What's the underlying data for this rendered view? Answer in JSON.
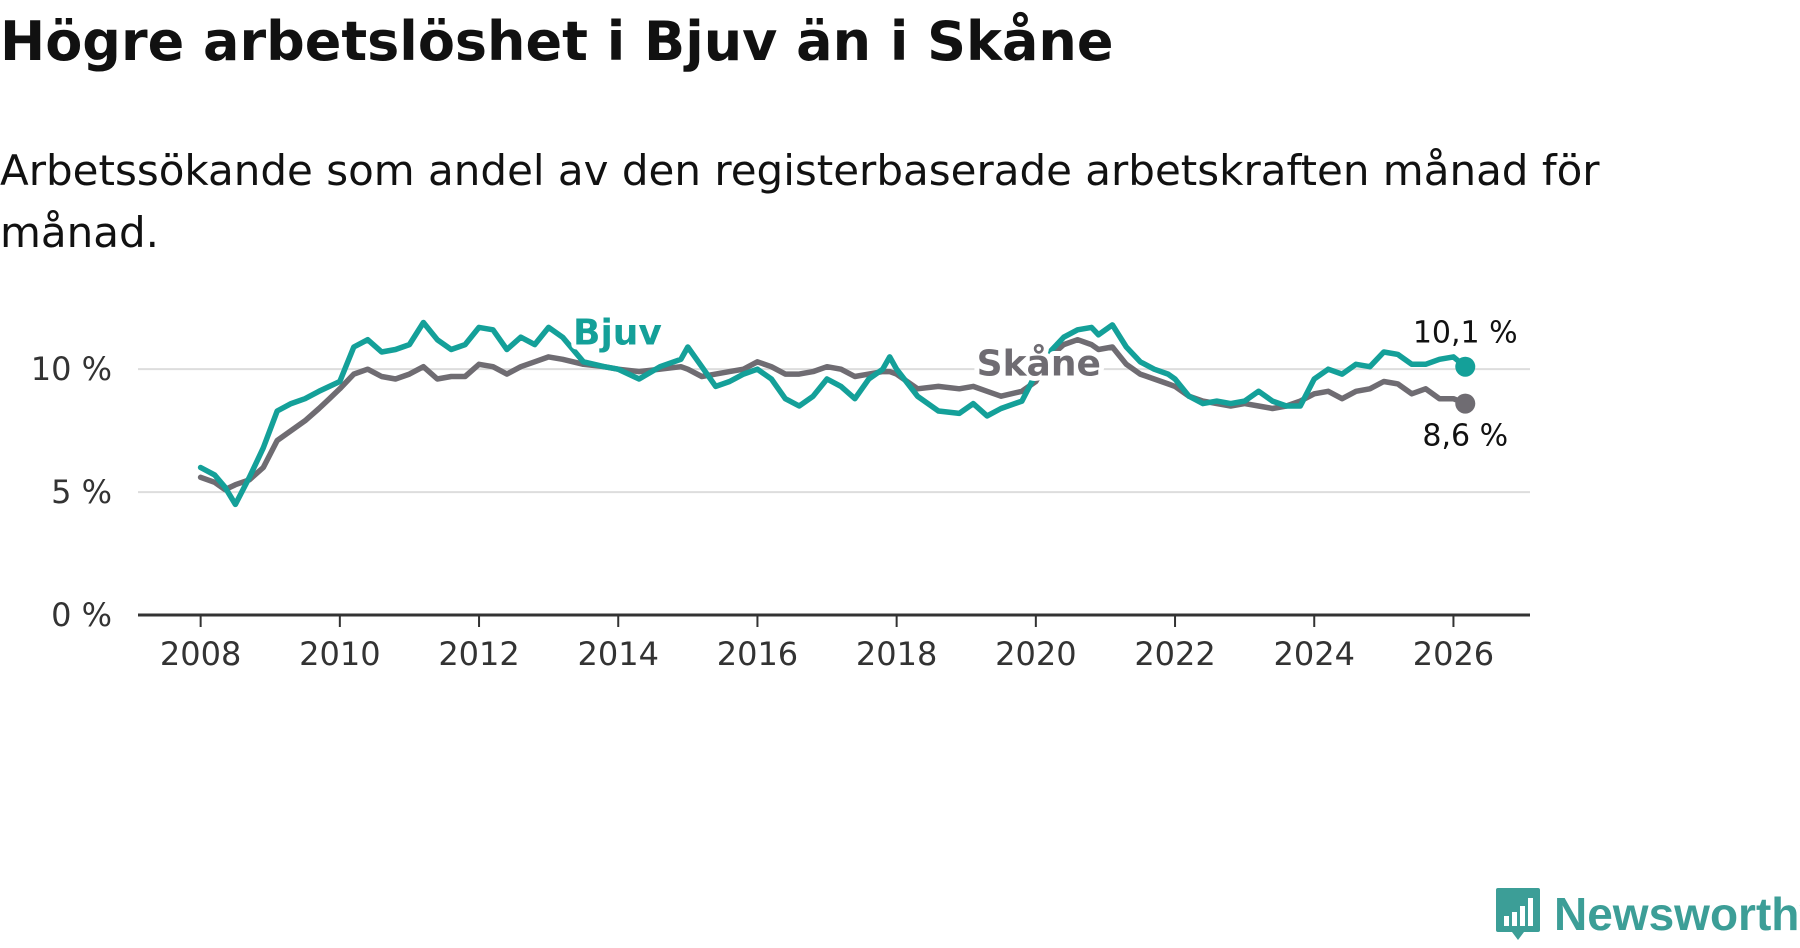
{
  "header": {
    "title": "Högre arbetslöshet i Bjuv än i Skåne",
    "subtitle": "Arbetssökande som andel av den registerbaserade arbetskraften månad för månad."
  },
  "logo": {
    "text": "Newsworthy",
    "icon": "bar-chart-speech-bubble-icon"
  },
  "colors": {
    "bjuv": "#14a099",
    "skane": "#6f6c72",
    "grid": "#dddddd",
    "axis": "#333333"
  },
  "chart_data": {
    "type": "line",
    "title": "Högre arbetslöshet i Bjuv än i Skåne",
    "xlabel": "",
    "ylabel": "",
    "xlim": [
      2007.1,
      2027.1
    ],
    "ylim": [
      0,
      12
    ],
    "grid": true,
    "x_ticks": [
      2008,
      2010,
      2012,
      2014,
      2016,
      2018,
      2020,
      2022,
      2024,
      2026
    ],
    "x_tick_labels": [
      "2008",
      "2010",
      "2012",
      "2014",
      "2016",
      "2018",
      "2020",
      "2022",
      "2024",
      "2026"
    ],
    "y_ticks": [
      0,
      5,
      10
    ],
    "y_tick_labels": [
      "0 %",
      "5 %",
      "10 %"
    ],
    "series": [
      {
        "name": "Bjuv",
        "label": "Bjuv",
        "end_label": "10,1 %",
        "x": [
          2008.0,
          2008.2,
          2008.35,
          2008.5,
          2008.7,
          2008.9,
          2009.1,
          2009.3,
          2009.5,
          2009.7,
          2009.85,
          2010.0,
          2010.2,
          2010.4,
          2010.6,
          2010.8,
          2011.0,
          2011.2,
          2011.4,
          2011.6,
          2011.8,
          2012.0,
          2012.2,
          2012.4,
          2012.6,
          2012.8,
          2013.0,
          2013.2,
          2013.5,
          2013.8,
          2014.0,
          2014.3,
          2014.6,
          2014.9,
          2015.0,
          2015.2,
          2015.4,
          2015.6,
          2015.8,
          2016.0,
          2016.2,
          2016.4,
          2016.6,
          2016.8,
          2017.0,
          2017.2,
          2017.4,
          2017.6,
          2017.8,
          2017.9,
          2018.0,
          2018.3,
          2018.6,
          2018.9,
          2019.1,
          2019.3,
          2019.5,
          2019.8,
          2020.0,
          2020.2,
          2020.4,
          2020.6,
          2020.8,
          2020.9,
          2021.1,
          2021.3,
          2021.5,
          2021.7,
          2021.9,
          2022.0,
          2022.2,
          2022.4,
          2022.6,
          2022.8,
          2023.0,
          2023.2,
          2023.4,
          2023.6,
          2023.8,
          2024.0,
          2024.2,
          2024.4,
          2024.6,
          2024.8,
          2025.0,
          2025.2,
          2025.4,
          2025.6,
          2025.8,
          2026.0,
          2026.17
        ],
        "values": [
          6.0,
          5.7,
          5.2,
          4.5,
          5.6,
          6.8,
          8.3,
          8.6,
          8.8,
          9.1,
          9.3,
          9.5,
          10.9,
          11.2,
          10.7,
          10.8,
          11.0,
          11.9,
          11.2,
          10.8,
          11.0,
          11.7,
          11.6,
          10.8,
          11.3,
          11.0,
          11.7,
          11.3,
          10.3,
          10.1,
          10.0,
          9.6,
          10.1,
          10.4,
          10.9,
          10.1,
          9.3,
          9.5,
          9.8,
          10.0,
          9.6,
          8.8,
          8.5,
          8.9,
          9.6,
          9.3,
          8.8,
          9.6,
          10.0,
          10.5,
          10.0,
          8.9,
          8.3,
          8.2,
          8.6,
          8.1,
          8.4,
          8.7,
          9.8,
          10.7,
          11.3,
          11.6,
          11.7,
          11.4,
          11.8,
          10.9,
          10.3,
          10.0,
          9.8,
          9.6,
          8.9,
          8.6,
          8.7,
          8.6,
          8.7,
          9.1,
          8.7,
          8.5,
          8.5,
          9.6,
          10.0,
          9.8,
          10.2,
          10.1,
          10.7,
          10.6,
          10.2,
          10.2,
          10.4,
          10.5,
          10.1
        ]
      },
      {
        "name": "Skåne",
        "label": "Skåne",
        "end_label": "8,6 %",
        "x": [
          2008.0,
          2008.2,
          2008.35,
          2008.5,
          2008.7,
          2008.9,
          2009.1,
          2009.3,
          2009.5,
          2009.7,
          2009.85,
          2010.0,
          2010.2,
          2010.4,
          2010.6,
          2010.8,
          2011.0,
          2011.2,
          2011.4,
          2011.6,
          2011.8,
          2012.0,
          2012.2,
          2012.4,
          2012.6,
          2012.8,
          2013.0,
          2013.2,
          2013.5,
          2013.8,
          2014.0,
          2014.3,
          2014.6,
          2014.9,
          2015.0,
          2015.2,
          2015.4,
          2015.6,
          2015.8,
          2016.0,
          2016.2,
          2016.4,
          2016.6,
          2016.8,
          2017.0,
          2017.2,
          2017.4,
          2017.6,
          2017.8,
          2017.9,
          2018.0,
          2018.3,
          2018.6,
          2018.9,
          2019.1,
          2019.3,
          2019.5,
          2019.8,
          2020.0,
          2020.2,
          2020.4,
          2020.6,
          2020.8,
          2020.9,
          2021.1,
          2021.3,
          2021.5,
          2021.7,
          2021.9,
          2022.0,
          2022.2,
          2022.4,
          2022.6,
          2022.8,
          2023.0,
          2023.2,
          2023.4,
          2023.6,
          2023.8,
          2024.0,
          2024.2,
          2024.4,
          2024.6,
          2024.8,
          2025.0,
          2025.2,
          2025.4,
          2025.6,
          2025.8,
          2026.0,
          2026.17
        ],
        "values": [
          5.6,
          5.4,
          5.1,
          5.3,
          5.5,
          6.0,
          7.1,
          7.5,
          7.9,
          8.4,
          8.8,
          9.2,
          9.8,
          10.0,
          9.7,
          9.6,
          9.8,
          10.1,
          9.6,
          9.7,
          9.7,
          10.2,
          10.1,
          9.8,
          10.1,
          10.3,
          10.5,
          10.4,
          10.2,
          10.1,
          10.0,
          9.9,
          10.0,
          10.1,
          10.0,
          9.7,
          9.8,
          9.9,
          10.0,
          10.3,
          10.1,
          9.8,
          9.8,
          9.9,
          10.1,
          10.0,
          9.7,
          9.8,
          9.9,
          9.9,
          9.8,
          9.2,
          9.3,
          9.2,
          9.3,
          9.1,
          8.9,
          9.1,
          9.5,
          10.5,
          11.0,
          11.2,
          11.0,
          10.8,
          10.9,
          10.2,
          9.8,
          9.6,
          9.4,
          9.3,
          8.9,
          8.7,
          8.6,
          8.5,
          8.6,
          8.5,
          8.4,
          8.5,
          8.7,
          9.0,
          9.1,
          8.8,
          9.1,
          9.2,
          9.5,
          9.4,
          9.0,
          9.2,
          8.8,
          8.8,
          8.6
        ]
      }
    ]
  }
}
